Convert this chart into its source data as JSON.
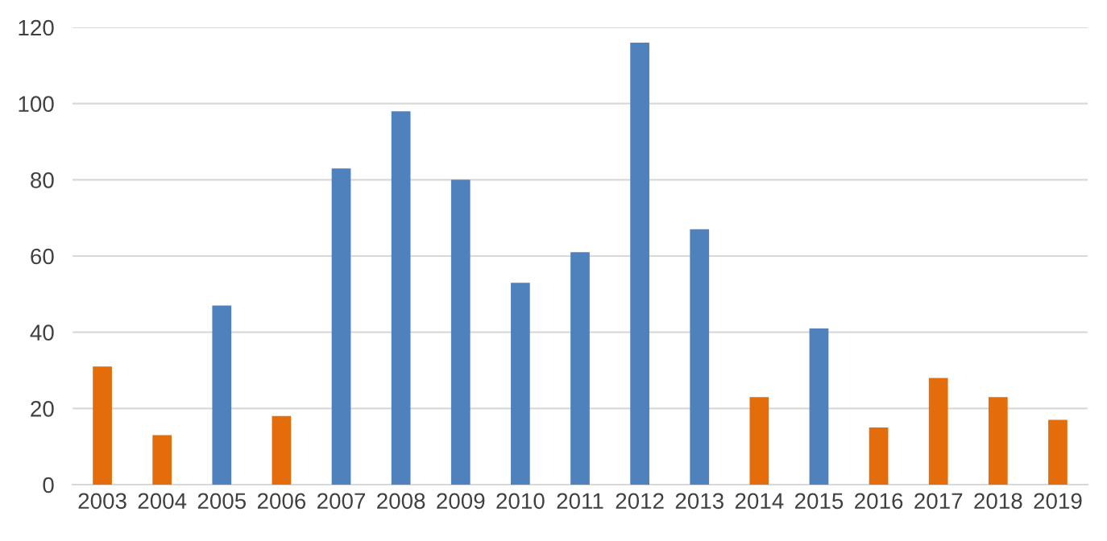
{
  "chart_data": {
    "type": "bar",
    "categories": [
      "2003",
      "2004",
      "2005",
      "2006",
      "2007",
      "2008",
      "2009",
      "2010",
      "2011",
      "2012",
      "2013",
      "2014",
      "2015",
      "2016",
      "2017",
      "2018",
      "2019"
    ],
    "values": [
      31,
      13,
      47,
      18,
      83,
      98,
      80,
      53,
      61,
      116,
      67,
      23,
      41,
      15,
      28,
      23,
      17
    ],
    "colors": [
      "#e46c0a",
      "#e46c0a",
      "#4f81bd",
      "#e46c0a",
      "#4f81bd",
      "#4f81bd",
      "#4f81bd",
      "#4f81bd",
      "#4f81bd",
      "#4f81bd",
      "#4f81bd",
      "#e46c0a",
      "#4f81bd",
      "#e46c0a",
      "#e46c0a",
      "#e46c0a",
      "#e46c0a"
    ],
    "ylim": [
      0,
      120
    ],
    "yticks": [
      0,
      20,
      40,
      60,
      80,
      100,
      120
    ],
    "grid": "y"
  }
}
